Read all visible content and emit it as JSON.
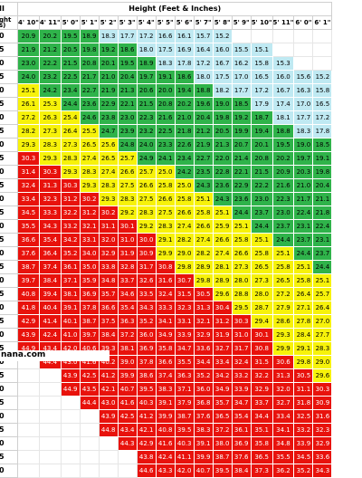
{
  "header": {
    "row_label": "II",
    "height_title": "Height (Feet & Inches)",
    "corner_lines": [
      "ght",
      "s)"
    ],
    "columns": [
      "4' 10\"",
      "4' 11\"",
      "5' 0\"",
      "5' 1\"",
      "5' 2\"",
      "5' 3\"",
      "5' 4\"",
      "5' 5\"",
      "5' 6\"",
      "5' 7\"",
      "5' 8\"",
      "5' 9\"",
      "5' 10\"",
      "5' 11\"",
      "6' 0\"",
      "6' 1\""
    ]
  },
  "rows": [
    {
      "label": "0",
      "cells": [
        "20.9",
        "20.2",
        "19.5",
        "18.9",
        "18.3",
        "17.7",
        "17.2",
        "16.6",
        "16.1",
        "15.7",
        "15.2",
        "",
        "",
        "",
        "",
        ""
      ]
    },
    {
      "label": "5",
      "cells": [
        "21.9",
        "21.2",
        "20.5",
        "19.8",
        "19.2",
        "18.6",
        "18.0",
        "17.5",
        "16.9",
        "16.4",
        "16.0",
        "15.5",
        "15.1",
        "",
        "",
        ""
      ]
    },
    {
      "label": "0",
      "cells": [
        "23.0",
        "22.2",
        "21.5",
        "20.8",
        "20.1",
        "19.5",
        "18.9",
        "18.3",
        "17.8",
        "17.2",
        "16.7",
        "16.2",
        "15.8",
        "15.3",
        "",
        ""
      ]
    },
    {
      "label": "5",
      "cells": [
        "24.0",
        "23.2",
        "22.5",
        "21.7",
        "21.0",
        "20.4",
        "19.7",
        "19.1",
        "18.6",
        "18.0",
        "17.5",
        "17.0",
        "16.5",
        "16.0",
        "15.6",
        "15.2"
      ]
    },
    {
      "label": "0",
      "cells": [
        "25.1",
        "24.2",
        "23.4",
        "22.7",
        "21.9",
        "21.3",
        "20.6",
        "20.0",
        "19.4",
        "18.8",
        "18.2",
        "17.7",
        "17.2",
        "16.7",
        "16.3",
        "15.8"
      ]
    },
    {
      "label": "5",
      "cells": [
        "26.1",
        "25.3",
        "24.4",
        "23.6",
        "22.9",
        "22.1",
        "21.5",
        "20.8",
        "20.2",
        "19.6",
        "19.0",
        "18.5",
        "17.9",
        "17.4",
        "17.0",
        "16.5"
      ]
    },
    {
      "label": "0",
      "cells": [
        "27.2",
        "26.3",
        "25.4",
        "24.6",
        "23.8",
        "23.0",
        "22.3",
        "21.6",
        "21.0",
        "20.4",
        "19.8",
        "19.2",
        "18.7",
        "18.1",
        "17.7",
        "17.2"
      ]
    },
    {
      "label": "5",
      "cells": [
        "28.2",
        "27.3",
        "26.4",
        "25.5",
        "24.7",
        "23.9",
        "23.2",
        "22.5",
        "21.8",
        "21.2",
        "20.5",
        "19.9",
        "19.4",
        "18.8",
        "18.3",
        "17.8"
      ]
    },
    {
      "label": "0",
      "cells": [
        "29.3",
        "28.3",
        "27.3",
        "26.5",
        "25.6",
        "24.8",
        "24.0",
        "23.3",
        "22.6",
        "21.9",
        "21.3",
        "20.7",
        "20.1",
        "19.5",
        "19.0",
        "18.5"
      ]
    },
    {
      "label": "5",
      "cells": [
        "30.3",
        "29.3",
        "28.3",
        "27.4",
        "26.5",
        "25.7",
        "24.9",
        "24.1",
        "23.4",
        "22.7",
        "22.0",
        "21.4",
        "20.8",
        "20.2",
        "19.7",
        "19.1"
      ]
    },
    {
      "label": "0",
      "cells": [
        "31.4",
        "30.3",
        "29.3",
        "28.3",
        "27.4",
        "26.6",
        "25.7",
        "25.0",
        "24.2",
        "23.5",
        "22.8",
        "22.1",
        "21.5",
        "20.9",
        "20.3",
        "19.8"
      ]
    },
    {
      "label": "5",
      "cells": [
        "32.4",
        "31.3",
        "30.3",
        "29.3",
        "28.3",
        "27.5",
        "26.6",
        "25.8",
        "25.0",
        "24.3",
        "23.6",
        "22.9",
        "22.2",
        "21.6",
        "21.0",
        "20.4"
      ]
    },
    {
      "label": "0",
      "cells": [
        "33.4",
        "32.3",
        "31.2",
        "30.2",
        "29.3",
        "28.3",
        "27.5",
        "26.6",
        "25.8",
        "25.1",
        "24.3",
        "23.6",
        "23.0",
        "22.3",
        "21.7",
        "21.1"
      ]
    },
    {
      "label": "5",
      "cells": [
        "34.5",
        "33.3",
        "32.2",
        "31.2",
        "30.2",
        "29.2",
        "28.3",
        "27.5",
        "26.6",
        "25.8",
        "25.1",
        "24.4",
        "23.7",
        "23.0",
        "22.4",
        "21.8"
      ]
    },
    {
      "label": "0",
      "cells": [
        "35.5",
        "34.3",
        "33.2",
        "32.1",
        "31.1",
        "30.1",
        "29.2",
        "28.3",
        "27.4",
        "26.6",
        "25.9",
        "25.1",
        "24.4",
        "23.7",
        "23.1",
        "22.4"
      ]
    },
    {
      "label": "5",
      "cells": [
        "36.6",
        "35.4",
        "34.2",
        "33.1",
        "32.0",
        "31.0",
        "30.0",
        "29.1",
        "28.2",
        "27.4",
        "26.6",
        "25.8",
        "25.1",
        "24.4",
        "23.7",
        "23.1"
      ]
    },
    {
      "label": "0",
      "cells": [
        "37.6",
        "36.4",
        "35.2",
        "34.0",
        "32.9",
        "31.9",
        "30.9",
        "29.9",
        "29.0",
        "28.2",
        "27.4",
        "26.6",
        "25.8",
        "25.1",
        "24.4",
        "23.7"
      ]
    },
    {
      "label": "5",
      "cells": [
        "38.7",
        "37.4",
        "36.1",
        "35.0",
        "33.8",
        "32.8",
        "31.7",
        "30.8",
        "29.8",
        "28.9",
        "28.1",
        "27.3",
        "26.5",
        "25.8",
        "25.1",
        "24.4"
      ]
    },
    {
      "label": "0",
      "cells": [
        "39.7",
        "38.4",
        "37.1",
        "35.9",
        "34.8",
        "33.7",
        "32.6",
        "31.6",
        "30.7",
        "29.8",
        "28.9",
        "28.0",
        "27.3",
        "26.5",
        "25.8",
        "25.1"
      ]
    },
    {
      "label": "5",
      "cells": [
        "40.8",
        "39.4",
        "38.1",
        "36.9",
        "35.7",
        "34.6",
        "33.5",
        "32.4",
        "31.5",
        "30.5",
        "29.6",
        "28.8",
        "28.0",
        "27.2",
        "26.4",
        "25.7"
      ]
    },
    {
      "label": "0",
      "cells": [
        "41.8",
        "40.4",
        "39.1",
        "37.8",
        "36.6",
        "35.4",
        "34.3",
        "33.3",
        "32.3",
        "31.3",
        "30.4",
        "29.5",
        "28.7",
        "27.9",
        "27.1",
        "26.4"
      ]
    },
    {
      "label": "5",
      "cells": [
        "42.9",
        "41.4",
        "40.1",
        "38.7",
        "37.5",
        "36.3",
        "35.2",
        "34.1",
        "33.1",
        "32.1",
        "31.2",
        "30.3",
        "29.4",
        "28.6",
        "27.8",
        "27.0"
      ]
    },
    {
      "label": "0",
      "cells": [
        "43.9",
        "42.4",
        "41.0",
        "39.7",
        "38.4",
        "37.2",
        "36.0",
        "34.9",
        "33.9",
        "32.9",
        "31.9",
        "31.0",
        "30.1",
        "29.3",
        "28.4",
        "27.7"
      ]
    },
    {
      "label": "5",
      "cells": [
        "44.9",
        "43.4",
        "42.0",
        "40.6",
        "39.3",
        "38.1",
        "36.9",
        "35.8",
        "34.7",
        "33.6",
        "32.7",
        "31.7",
        "30.8",
        "29.9",
        "29.1",
        "28.3"
      ]
    },
    {
      "label": "0",
      "cells": [
        "",
        "44.4",
        "43.0",
        "41.6",
        "40.2",
        "39.0",
        "37.8",
        "36.6",
        "35.5",
        "34.4",
        "33.4",
        "32.4",
        "31.5",
        "30.6",
        "29.8",
        "29.0"
      ]
    },
    {
      "label": "5",
      "cells": [
        "",
        "",
        "43.9",
        "42.5",
        "41.2",
        "39.9",
        "38.6",
        "37.4",
        "36.3",
        "35.2",
        "34.2",
        "33.2",
        "32.2",
        "31.3",
        "30.5",
        "29.6"
      ]
    },
    {
      "label": "0",
      "cells": [
        "",
        "",
        "44.9",
        "43.5",
        "42.1",
        "40.7",
        "39.5",
        "38.3",
        "37.1",
        "36.0",
        "34.9",
        "33.9",
        "32.9",
        "32.0",
        "31.1",
        "30.3"
      ]
    },
    {
      "label": "5",
      "cells": [
        "",
        "",
        "",
        "44.4",
        "43.0",
        "41.6",
        "40.3",
        "39.1",
        "37.9",
        "36.8",
        "35.7",
        "34.7",
        "33.7",
        "32.7",
        "31.8",
        "30.9"
      ]
    },
    {
      "label": "0",
      "cells": [
        "",
        "",
        "",
        "",
        "43.9",
        "42.5",
        "41.2",
        "39.9",
        "38.7",
        "37.6",
        "36.5",
        "35.4",
        "34.4",
        "33.4",
        "32.5",
        "31.6"
      ]
    },
    {
      "label": "5",
      "cells": [
        "",
        "",
        "",
        "",
        "44.8",
        "43.4",
        "42.1",
        "40.8",
        "39.5",
        "38.3",
        "37.2",
        "36.1",
        "35.1",
        "34.1",
        "33.2",
        "32.3"
      ]
    },
    {
      "label": "0",
      "cells": [
        "",
        "",
        "",
        "",
        "",
        "44.3",
        "42.9",
        "41.6",
        "40.3",
        "39.1",
        "38.0",
        "36.9",
        "35.8",
        "34.8",
        "33.9",
        "32.9"
      ]
    },
    {
      "label": "5",
      "cells": [
        "",
        "",
        "",
        "",
        "",
        "",
        "43.8",
        "42.4",
        "41.1",
        "39.9",
        "38.7",
        "37.6",
        "36.5",
        "35.5",
        "34.5",
        "33.6"
      ]
    },
    {
      "label": "0",
      "cells": [
        "",
        "",
        "",
        "",
        "",
        "",
        "44.6",
        "43.3",
        "42.0",
        "40.7",
        "39.5",
        "38.4",
        "37.3",
        "36.2",
        "35.2",
        "34.3"
      ]
    }
  ],
  "footer": {
    "text": "nana.com"
  },
  "colors": {
    "underweight": "#bfe9f2",
    "normal": "#2fb34a",
    "overweight": "#f7f20a",
    "obese": "#e8120c"
  }
}
